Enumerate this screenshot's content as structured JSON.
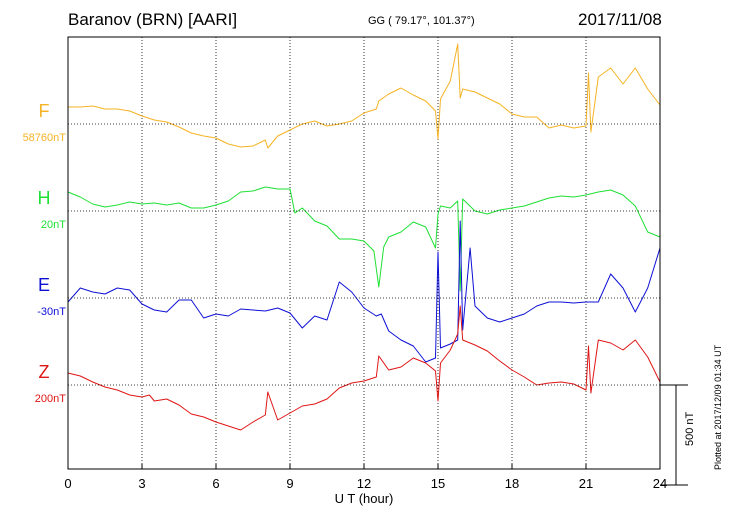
{
  "header": {
    "station": "Baranov (BRN)  [AARI]",
    "coords": "GG ( 79.17°, 101.37°)",
    "date": "2017/11/08"
  },
  "side_note": "Plotted at 2017/12/09 01:34 UT",
  "scale_bar": {
    "label": "500 nT",
    "value_nT": 500
  },
  "colors": {
    "F": "#f5b325",
    "H": "#1fe034",
    "E": "#0d10d4",
    "Z": "#e01515",
    "axis": "#000000",
    "grid": "#000000"
  },
  "chart_data": {
    "type": "line",
    "xlabel": "U T (hour)",
    "xlim": [
      0,
      24
    ],
    "xticks": [
      "0",
      "3",
      "6",
      "9",
      "12",
      "15",
      "18",
      "21",
      "24"
    ],
    "grid": true,
    "units": "nT",
    "trace_spacing_nT": 435,
    "series": [
      {
        "name": "F",
        "baseline_label": "58760nT",
        "x": [
          0,
          0.5,
          1,
          1.5,
          2,
          2.5,
          3,
          3.5,
          4,
          4.5,
          5,
          5.5,
          6,
          6.5,
          7,
          7.5,
          8,
          8.1,
          8.5,
          9,
          9.5,
          10,
          10.5,
          11,
          11.5,
          12,
          12.5,
          12.6,
          13,
          13.5,
          14,
          14.5,
          14.9,
          15,
          15.1,
          15.5,
          15.8,
          15.9,
          16,
          16.5,
          17,
          17.5,
          18,
          18.5,
          19,
          19.5,
          20,
          20.5,
          21,
          21.1,
          21.2,
          21.5,
          22,
          22.5,
          23,
          23.5,
          24
        ],
        "y": [
          85,
          85,
          90,
          75,
          75,
          65,
          40,
          20,
          10,
          -15,
          -45,
          -60,
          -70,
          -100,
          -115,
          -110,
          -80,
          -120,
          -60,
          -30,
          0,
          15,
          -10,
          0,
          15,
          55,
          75,
          115,
          150,
          180,
          145,
          115,
          65,
          -75,
          125,
          215,
          400,
          130,
          175,
          160,
          130,
          100,
          50,
          35,
          35,
          -20,
          -5,
          -20,
          -10,
          255,
          -40,
          235,
          280,
          200,
          280,
          175,
          95
        ]
      },
      {
        "name": "H",
        "baseline_label": "20nT",
        "x": [
          0,
          0.5,
          1,
          1.5,
          2,
          2.5,
          3,
          3.5,
          4,
          4.5,
          5,
          5.5,
          6,
          6.5,
          7,
          7.5,
          8,
          8.5,
          9,
          9.2,
          9.5,
          10,
          10.5,
          11,
          11.5,
          12,
          12.4,
          12.6,
          12.8,
          13,
          13.5,
          14,
          14.5,
          14.9,
          15,
          15.1,
          15.5,
          15.8,
          15.9,
          16,
          16.5,
          17,
          17.5,
          18,
          18.5,
          19,
          19.5,
          20,
          20.5,
          21,
          21.5,
          22,
          22.5,
          23,
          23.5,
          24
        ],
        "y": [
          95,
          70,
          35,
          20,
          30,
          45,
          35,
          40,
          30,
          40,
          15,
          15,
          30,
          50,
          95,
          100,
          120,
          110,
          110,
          -10,
          15,
          -50,
          -75,
          -140,
          -140,
          -150,
          -200,
          -380,
          -180,
          -130,
          -105,
          -55,
          -80,
          -185,
          -15,
          25,
          15,
          50,
          -400,
          60,
          0,
          -15,
          5,
          15,
          25,
          45,
          65,
          75,
          70,
          80,
          95,
          105,
          80,
          25,
          -105,
          -130
        ]
      },
      {
        "name": "E",
        "baseline_label": "-30nT",
        "x": [
          0,
          0.5,
          1,
          1.5,
          2,
          2.5,
          3,
          3.5,
          4,
          4.5,
          5,
          5.5,
          6,
          6.5,
          7,
          7.5,
          8,
          8.5,
          9,
          9.5,
          10,
          10.5,
          11,
          11.5,
          12,
          12.5,
          12.7,
          13,
          13.5,
          14,
          14.5,
          14.9,
          15,
          15.1,
          15.5,
          15.8,
          15.9,
          16,
          16.3,
          16.5,
          17,
          17.5,
          18,
          18.5,
          19,
          19.5,
          20,
          20.5,
          21,
          21.5,
          22,
          22.5,
          23,
          23.5,
          24
        ],
        "y": [
          -20,
          50,
          30,
          20,
          50,
          40,
          -30,
          -60,
          -70,
          -10,
          -10,
          -100,
          -80,
          -90,
          -55,
          -60,
          -65,
          -50,
          -75,
          -150,
          -90,
          -110,
          80,
          30,
          -50,
          -90,
          -80,
          -165,
          -210,
          -240,
          -320,
          -300,
          230,
          -250,
          -230,
          -210,
          385,
          -160,
          250,
          -40,
          -100,
          -120,
          -100,
          -80,
          -40,
          -20,
          -20,
          -25,
          -20,
          -20,
          120,
          50,
          -70,
          50,
          250
        ]
      },
      {
        "name": "Z",
        "baseline_label": "200nT",
        "x": [
          0,
          0.5,
          1,
          1.5,
          2,
          2.5,
          3,
          3.3,
          3.5,
          4,
          4.5,
          5,
          5.5,
          6,
          6.5,
          7,
          7.5,
          8,
          8.1,
          8.5,
          9,
          9.5,
          10,
          10.5,
          11,
          11.5,
          12,
          12.5,
          12.6,
          13,
          13.5,
          14,
          14.5,
          14.9,
          15,
          15.1,
          15.5,
          15.8,
          15.9,
          16,
          16.5,
          17,
          17.5,
          18,
          18.5,
          19,
          19.5,
          20,
          20.5,
          21,
          21.1,
          21.2,
          21.5,
          22,
          22.5,
          23,
          23.5,
          24
        ],
        "y": [
          60,
          45,
          15,
          -10,
          -25,
          -50,
          -60,
          -50,
          -80,
          -70,
          -100,
          -145,
          -160,
          -185,
          -205,
          -225,
          -185,
          -150,
          -35,
          -175,
          -140,
          -105,
          -95,
          -70,
          -15,
          10,
          20,
          40,
          145,
          75,
          90,
          135,
          110,
          70,
          -80,
          110,
          175,
          255,
          395,
          225,
          200,
          170,
          120,
          75,
          40,
          0,
          10,
          15,
          5,
          -25,
          195,
          -40,
          225,
          210,
          175,
          225,
          140,
          15
        ]
      }
    ]
  }
}
